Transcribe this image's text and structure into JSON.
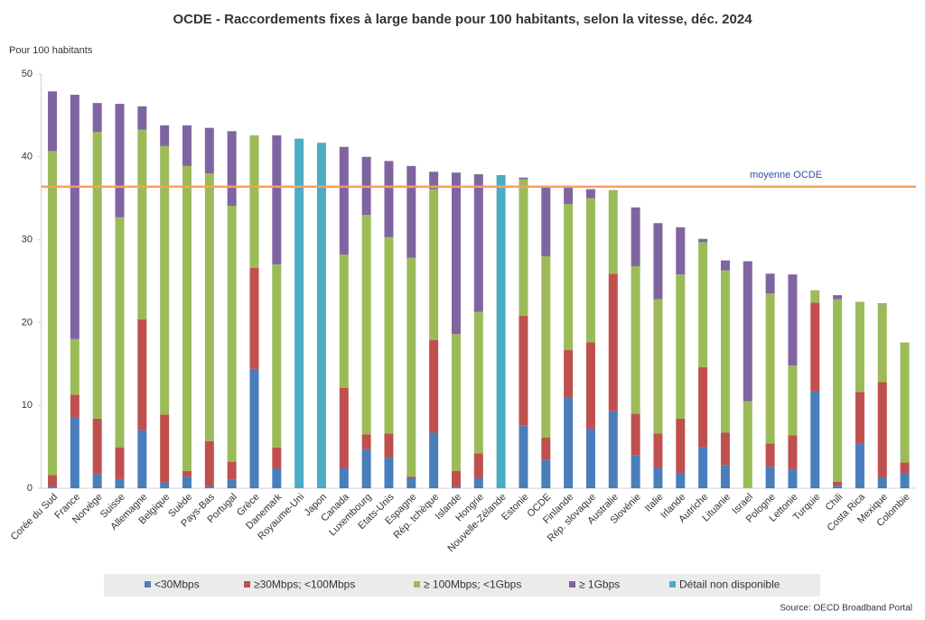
{
  "chart_data": {
    "type": "stacked_bar",
    "title": "OCDE - Raccordements fixes à large bande pour 100 habitants, selon la vitesse, déc. 2024",
    "y_label": "Pour 100 habitants",
    "source": "Source: OECD Broadband Portal",
    "categories": [
      "Corée du Sud",
      "France",
      "Norvège",
      "Suisse",
      "Allemagne",
      "Belgique",
      "Suède",
      "Pays-Bas",
      "Portugal",
      "Grèce",
      "Danemark",
      "Royaume-Uni",
      "Japon",
      "Canada",
      "Luxembourg",
      "Etats-Unis",
      "Espagne",
      "Rép. tchèque",
      "Islande",
      "Hongrie",
      "Nouvelle-Zélande",
      "Estonie",
      "OCDE",
      "Finlande",
      "Rép. slovaque",
      "Australie",
      "Slovénie",
      "Italie",
      "Irlande",
      "Autriche",
      "Lituanie",
      "Israel",
      "Pologne",
      "Lettonie",
      "Turquie",
      "Chili",
      "Costa Rica",
      "Mexique",
      "Colombie"
    ],
    "series": [
      {
        "name": "<30Mbps",
        "color": "#4a7ebb",
        "values": [
          0.2,
          8.5,
          1.7,
          1.1,
          7.0,
          0.7,
          1.4,
          0.2,
          1.0,
          14.4,
          2.4,
          null,
          null,
          2.4,
          4.7,
          3.7,
          1.2,
          6.7,
          0.2,
          1.2,
          null,
          7.6,
          3.4,
          10.9,
          7.2,
          9.3,
          4.0,
          2.5,
          1.8,
          5.0,
          2.8,
          0,
          2.6,
          2.3,
          11.7,
          0.3,
          5.4,
          1.3,
          1.8
        ]
      },
      {
        "name": "≥30Mbps;  <100Mbps",
        "color": "#c0504d",
        "values": [
          1.4,
          2.8,
          6.7,
          3.8,
          13.4,
          8.2,
          0.7,
          5.5,
          2.2,
          12.2,
          2.5,
          null,
          null,
          9.7,
          1.8,
          2.9,
          0.2,
          11.2,
          1.9,
          3.0,
          null,
          13.2,
          2.7,
          5.8,
          10.4,
          16.6,
          5.0,
          4.1,
          6.6,
          9.6,
          3.9,
          0,
          2.8,
          4.1,
          10.7,
          0.5,
          6.2,
          11.5,
          1.3
        ]
      },
      {
        "name": "≥ 100Mbps; <1Gbps",
        "color": "#9bbb59",
        "values": [
          39.1,
          6.7,
          34.6,
          27.8,
          22.9,
          32.4,
          36.8,
          32.3,
          30.9,
          16.0,
          22.1,
          null,
          null,
          16.1,
          26.5,
          23.7,
          26.4,
          18.2,
          16.5,
          17.1,
          null,
          16.5,
          21.9,
          17.6,
          17.4,
          10.1,
          17.8,
          16.2,
          17.4,
          15.1,
          19.6,
          10.5,
          18.1,
          8.4,
          1.5,
          22.0,
          10.9,
          9.4,
          14.5
        ]
      },
      {
        "name": "≥ 1Gbps",
        "color": "#8064a2",
        "values": [
          7.2,
          29.5,
          3.5,
          13.7,
          2.8,
          2.5,
          4.9,
          5.5,
          9.0,
          0,
          15.6,
          null,
          null,
          13.0,
          7.0,
          9.2,
          11.1,
          2.1,
          19.5,
          16.6,
          null,
          0.2,
          8.4,
          2.1,
          1.1,
          0,
          7.1,
          9.2,
          5.7,
          0.4,
          1.2,
          16.9,
          2.4,
          11.0,
          0,
          0.5,
          0,
          0.1,
          0
        ]
      },
      {
        "name": "Détail non disponible",
        "color": "#4bacc6",
        "values": [
          null,
          null,
          null,
          null,
          null,
          null,
          null,
          null,
          null,
          null,
          null,
          42.2,
          41.7,
          null,
          null,
          null,
          null,
          null,
          null,
          null,
          37.8,
          null,
          null,
          null,
          null,
          null,
          null,
          null,
          null,
          null,
          null,
          null,
          null,
          null,
          null,
          null,
          null,
          null,
          null
        ]
      }
    ],
    "reference_line": {
      "label": "moyenne OCDE",
      "value": 36.4,
      "color": "#f4a15d"
    },
    "ylim": [
      0,
      50
    ],
    "yticks": [
      0,
      10,
      20,
      30,
      40,
      50
    ],
    "grid": false,
    "legend": "bottom"
  }
}
